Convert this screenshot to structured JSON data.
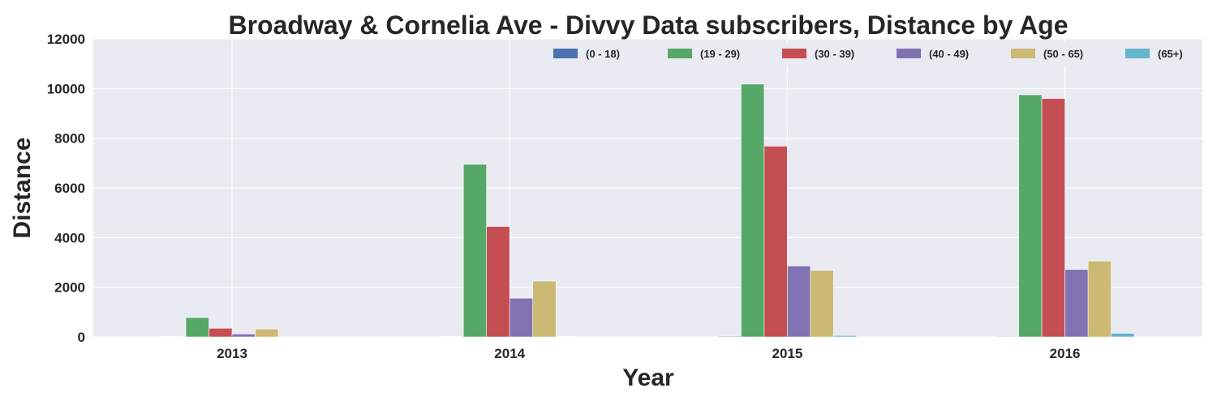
{
  "chart_data": {
    "type": "bar",
    "title": "Broadway & Cornelia Ave - Divvy Data subscribers, Distance by Age",
    "xlabel": "Year",
    "ylabel": "Distance",
    "categories": [
      "2013",
      "2014",
      "2015",
      "2016"
    ],
    "ylim": [
      0,
      12000
    ],
    "yticks": [
      0,
      2000,
      4000,
      6000,
      8000,
      10000,
      12000
    ],
    "grid": true,
    "legend_position": "top-right",
    "series": [
      {
        "name": "(0 - 18)",
        "color": "#4C72B0",
        "values": [
          10,
          20,
          30,
          25
        ]
      },
      {
        "name": "(19 - 29)",
        "color": "#55A868",
        "values": [
          780,
          6950,
          10180,
          9750
        ]
      },
      {
        "name": "(30 - 39)",
        "color": "#C44E52",
        "values": [
          350,
          4450,
          7680,
          9600
        ]
      },
      {
        "name": "(40 - 49)",
        "color": "#8172B2",
        "values": [
          120,
          1560,
          2860,
          2720
        ]
      },
      {
        "name": "(50 - 65)",
        "color": "#CCB974",
        "values": [
          320,
          2250,
          2680,
          3060
        ]
      },
      {
        "name": "(65+)",
        "color": "#64B5CD",
        "values": [
          0,
          10,
          60,
          150
        ]
      }
    ]
  }
}
